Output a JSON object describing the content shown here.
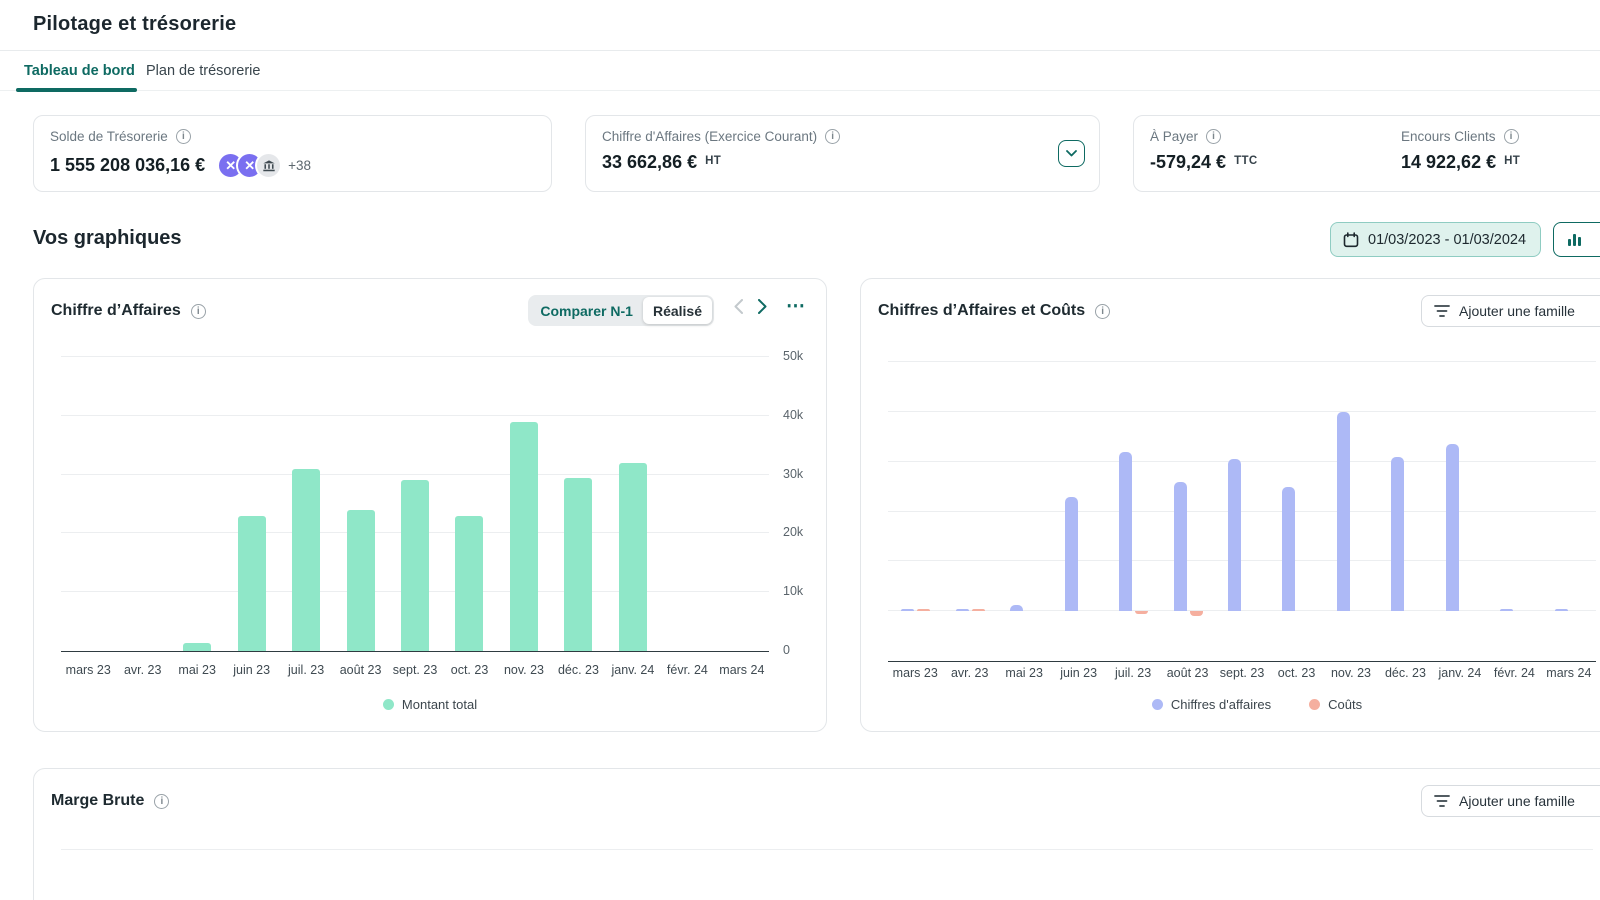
{
  "header": {
    "title": "Pilotage et trésorerie"
  },
  "tabs": {
    "dashboard": "Tableau de bord",
    "treasury_plan": "Plan de trésorerie"
  },
  "kpi_cards": {
    "treasury": {
      "label": "Solde de Trésorerie",
      "value": "1 555 208 036,16 €",
      "extra_count": "+38"
    },
    "revenue": {
      "label": "Chiffre d'Affaires (Exercice Courant)",
      "value": "33 662,86 €",
      "unit": "HT"
    },
    "payable": {
      "label": "À Payer",
      "value": "-579,24 €",
      "unit": "TTC"
    },
    "receivable": {
      "label": "Encours Clients",
      "value": "14 922,62 €",
      "unit": "HT"
    }
  },
  "graphs_section": {
    "title": "Vos graphiques",
    "date_range": "01/03/2023 - 01/03/2024"
  },
  "glyphs": {
    "bank_logo_x": "✕",
    "more_options": "⋯"
  },
  "chart_data": [
    {
      "type": "bar",
      "title": "Chiffre d’Affaires",
      "toggle": [
        "Comparer N-1",
        "Réalisé"
      ],
      "toggle_selected": "Réalisé",
      "categories": [
        "mars 23",
        "avr. 23",
        "mai 23",
        "juin 23",
        "juil. 23",
        "août 23",
        "sept. 23",
        "oct. 23",
        "nov. 23",
        "déc. 23",
        "janv. 24",
        "févr. 24",
        "mars 24"
      ],
      "series": [
        {
          "name": "Montant total",
          "color": "#8FE7C8",
          "values": [
            0,
            0,
            1300,
            23000,
            31000,
            24000,
            29000,
            23000,
            39000,
            29500,
            32000,
            0,
            0
          ]
        }
      ],
      "ylim": [
        0,
        50000
      ],
      "ytick_step": 10000,
      "ytick_labels": [
        "0",
        "10k",
        "20k",
        "30k",
        "40k",
        "50k"
      ],
      "legend_position": "bottom",
      "grid": true
    },
    {
      "type": "bar",
      "title": "Chiffres d’Affaires et Coûts",
      "action_button": "Ajouter une famille",
      "categories": [
        "mars 23",
        "avr. 23",
        "mai 23",
        "juin 23",
        "juil. 23",
        "août 23",
        "sept. 23",
        "oct. 23",
        "nov. 23",
        "déc. 23",
        "janv. 24",
        "févr. 24",
        "mars 24"
      ],
      "series": [
        {
          "name": "Chiffres d'affaires",
          "color": "#ADB9F6",
          "values": [
            500,
            350,
            1300,
            23000,
            32000,
            26000,
            30500,
            25000,
            40000,
            31000,
            33500,
            300,
            500
          ]
        },
        {
          "name": "Coûts",
          "color": "#F5AF9F",
          "values": [
            450,
            350,
            0,
            0,
            -500,
            -1000,
            0,
            0,
            0,
            0,
            0,
            0,
            0
          ]
        }
      ],
      "ylim": [
        -10000,
        50000
      ],
      "ytick_step": 10000,
      "legend_position": "bottom",
      "grid": true
    },
    {
      "type": "bar",
      "title": "Marge Brute",
      "action_button": "Ajouter une famille"
    }
  ]
}
